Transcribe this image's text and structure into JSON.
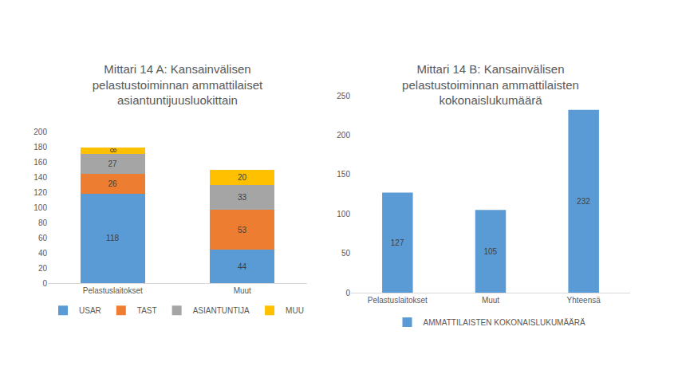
{
  "chart_data": [
    {
      "type": "bar",
      "title": "Mittari 14 A: Kansainvälisen\npelastustoiminnan ammattilaiset\nasiantuntijuusluokittain",
      "categories": [
        "Pelastuslaitokset",
        "Muut"
      ],
      "stacked": true,
      "series": [
        {
          "name": "USAR",
          "color": "#5b9bd5",
          "values": [
            118,
            44
          ]
        },
        {
          "name": "TAST",
          "color": "#ed7d31",
          "values": [
            26,
            53
          ]
        },
        {
          "name": "ASIANTUNTIJA",
          "color": "#a5a5a5",
          "values": [
            27,
            33
          ]
        },
        {
          "name": "MUU",
          "color": "#ffc000",
          "values": [
            8,
            20
          ]
        }
      ],
      "ylim": [
        0,
        200
      ],
      "yticks": [
        0,
        20,
        40,
        60,
        80,
        100,
        120,
        140,
        160,
        180,
        200
      ],
      "grid": false,
      "legend": "bottom",
      "data_labels": true
    },
    {
      "type": "bar",
      "title": "Mittari 14 B: Kansainvälisen\npelastustoiminnan ammattilaisten\nkokonaislukumäärä",
      "categories": [
        "Pelastuslaitokset",
        "Muut",
        "Yhteensä"
      ],
      "stacked": false,
      "series": [
        {
          "name": "AMMATTILAISTEN KOKONAISLUKUMÄÄRÄ",
          "color": "#5b9bd5",
          "values": [
            127,
            105,
            232
          ]
        }
      ],
      "ylim": [
        0,
        250
      ],
      "yticks": [
        0,
        50,
        100,
        150,
        200,
        250
      ],
      "grid": false,
      "legend": "bottom",
      "data_labels": true
    }
  ]
}
